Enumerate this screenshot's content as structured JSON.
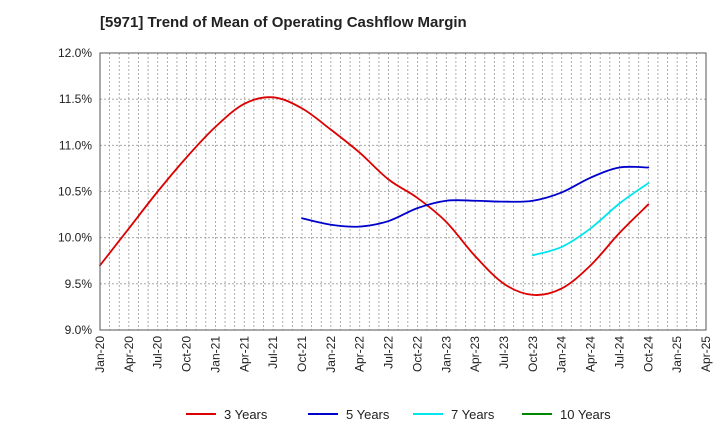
{
  "chart_data": {
    "type": "line",
    "title": "[5971]  Trend of Mean of Operating Cashflow Margin",
    "xlabel": "",
    "ylabel": "",
    "x_ticks": [
      "Jan-20",
      "Apr-20",
      "Jul-20",
      "Oct-20",
      "Jan-21",
      "Apr-21",
      "Jul-21",
      "Oct-21",
      "Jan-22",
      "Apr-22",
      "Jul-22",
      "Oct-22",
      "Jan-23",
      "Apr-23",
      "Jul-23",
      "Oct-23",
      "Jan-24",
      "Apr-24",
      "Jul-24",
      "Oct-24",
      "Jan-25",
      "Apr-25"
    ],
    "x_minor_step": "monthly",
    "y_ticks": [
      "9.0%",
      "9.5%",
      "10.0%",
      "10.5%",
      "11.0%",
      "11.5%",
      "12.0%"
    ],
    "ylim": [
      9.0,
      12.0
    ],
    "grid": true,
    "legend_position": "bottom",
    "series": [
      {
        "name": "3 Years",
        "color": "#dd0000",
        "points": [
          [
            "Jan-20",
            9.7
          ],
          [
            "Apr-20",
            10.1
          ],
          [
            "Jul-20",
            10.5
          ],
          [
            "Oct-20",
            10.87
          ],
          [
            "Jan-21",
            11.2
          ],
          [
            "Apr-21",
            11.45
          ],
          [
            "Jul-21",
            11.52
          ],
          [
            "Oct-21",
            11.4
          ],
          [
            "Jan-22",
            11.17
          ],
          [
            "Apr-22",
            10.92
          ],
          [
            "Jul-22",
            10.63
          ],
          [
            "Oct-22",
            10.43
          ],
          [
            "Jan-23",
            10.17
          ],
          [
            "Apr-23",
            9.8
          ],
          [
            "Jul-23",
            9.5
          ],
          [
            "Oct-23",
            9.38
          ],
          [
            "Jan-24",
            9.45
          ],
          [
            "Apr-24",
            9.7
          ],
          [
            "Jul-24",
            10.05
          ],
          [
            "Oct-24",
            10.36
          ]
        ]
      },
      {
        "name": "5 Years",
        "color": "#0000cc",
        "points": [
          [
            "Oct-21",
            10.21
          ],
          [
            "Jan-22",
            10.14
          ],
          [
            "Apr-22",
            10.12
          ],
          [
            "Jul-22",
            10.18
          ],
          [
            "Oct-22",
            10.32
          ],
          [
            "Jan-23",
            10.4
          ],
          [
            "Apr-23",
            10.4
          ],
          [
            "Jul-23",
            10.39
          ],
          [
            "Oct-23",
            10.4
          ],
          [
            "Jan-24",
            10.49
          ],
          [
            "Apr-24",
            10.65
          ],
          [
            "Jul-24",
            10.76
          ],
          [
            "Oct-24",
            10.76
          ]
        ]
      },
      {
        "name": "7 Years",
        "color": "#00e5ee",
        "points": [
          [
            "Oct-23",
            9.81
          ],
          [
            "Jan-24",
            9.9
          ],
          [
            "Apr-24",
            10.1
          ],
          [
            "Jul-24",
            10.37
          ],
          [
            "Oct-24",
            10.59
          ]
        ]
      },
      {
        "name": "10 Years",
        "color": "#008800",
        "points": []
      }
    ]
  }
}
